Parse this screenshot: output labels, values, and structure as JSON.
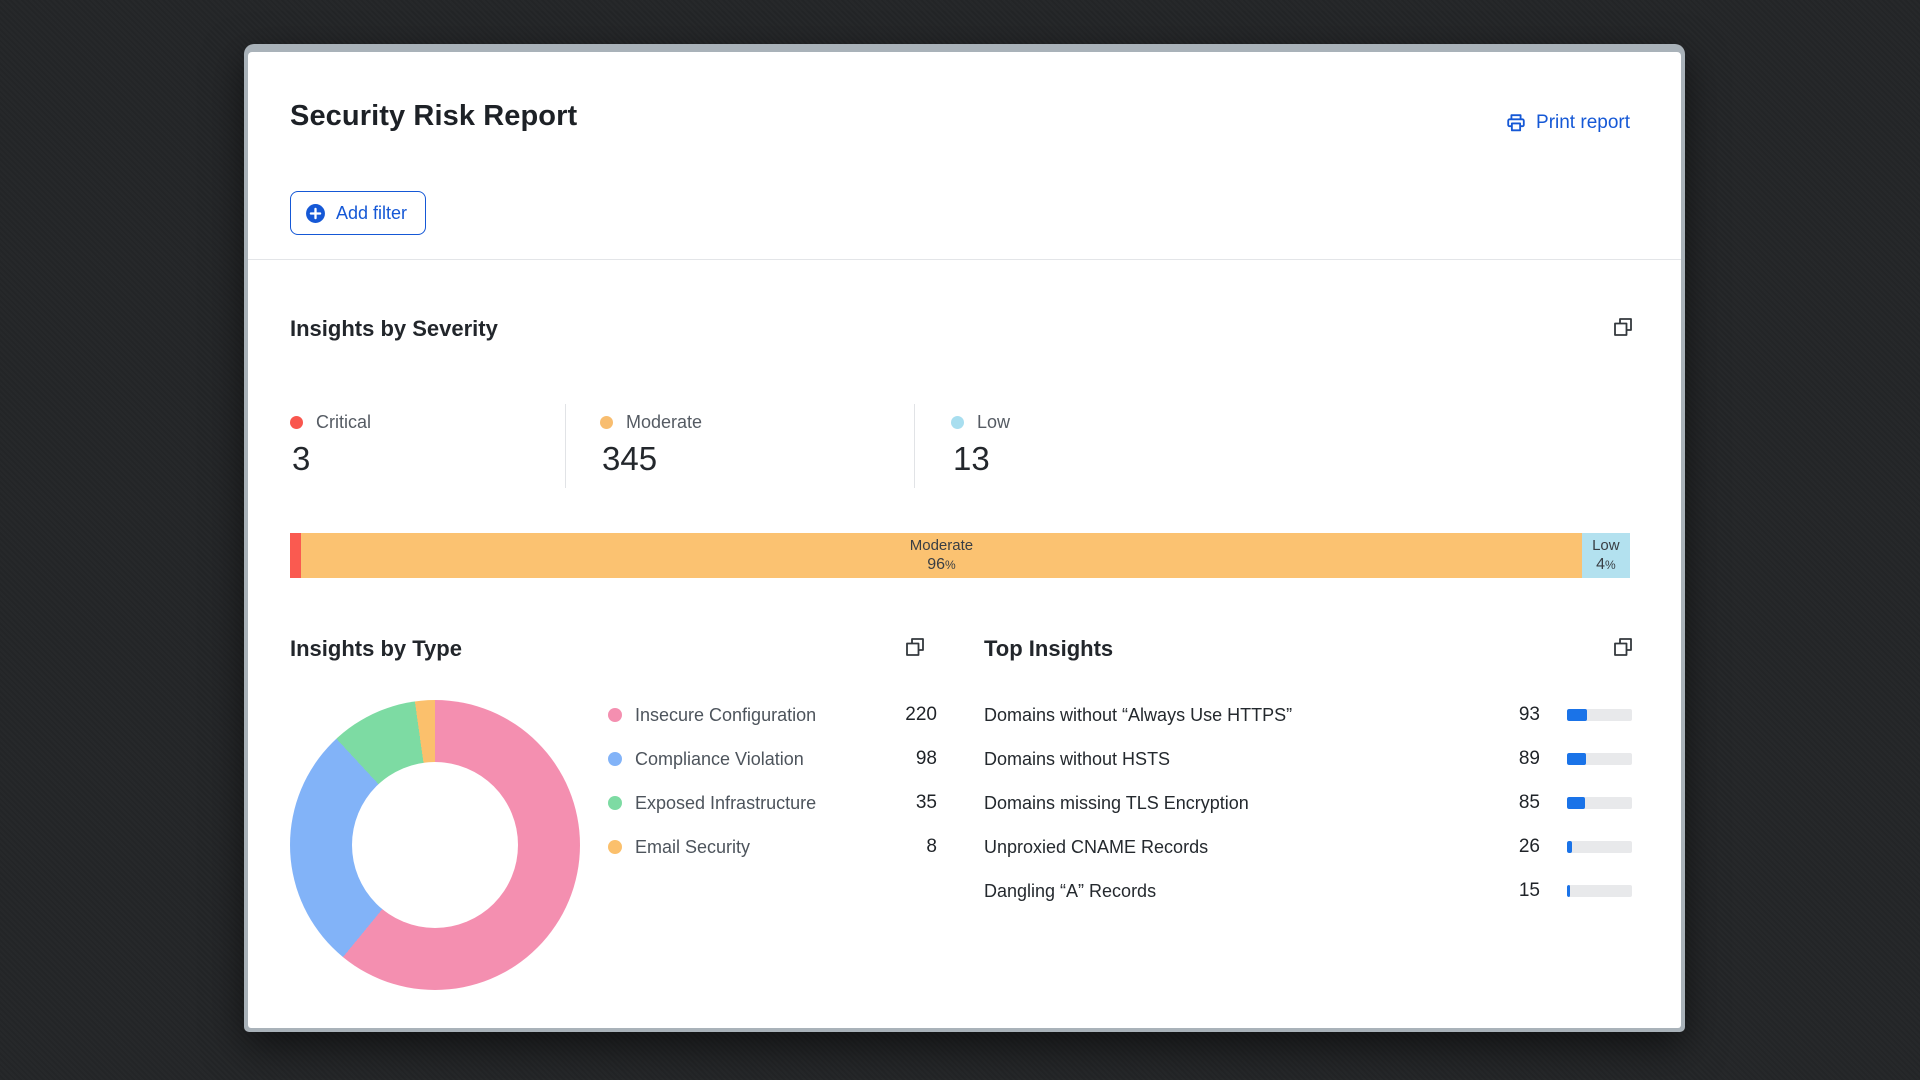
{
  "header": {
    "title": "Security Risk Report",
    "print_label": "Print report",
    "add_filter_label": "Add filter"
  },
  "icons": {
    "print": "printer-icon",
    "add_filter": "plus-circle-icon",
    "section_action": "copy-icon"
  },
  "colors": {
    "link_blue": "#1558d6",
    "critical_red": "#fa5a50",
    "moderate_orange": "#fbc271",
    "low_blue": "#b3e1ef",
    "mini_bar_blue": "#1a73e8",
    "background": "#242628",
    "window_chrome": "#a9b2b9"
  },
  "severity": {
    "section_title": "Insights by Severity",
    "stats": [
      {
        "label": "Critical",
        "value": "3",
        "color": "#f9564e"
      },
      {
        "label": "Moderate",
        "value": "345",
        "color": "#f8bd6f"
      },
      {
        "label": "Low",
        "value": "13",
        "color": "#a8deef"
      }
    ],
    "bar": {
      "segments": [
        {
          "name": "Critical",
          "pct": 0.83,
          "color": "#fa5a50",
          "label": "",
          "pct_label": "",
          "pct_sign": ""
        },
        {
          "name": "Moderate",
          "pct": 95.57,
          "color": "#fbc271",
          "label": "Moderate",
          "pct_label": "96",
          "pct_sign": "%"
        },
        {
          "name": "Low",
          "pct": 3.6,
          "color": "#b3e1ef",
          "label": "Low",
          "pct_label": "4",
          "pct_sign": "%"
        }
      ]
    }
  },
  "by_type": {
    "section_title": "Insights by Type",
    "items": [
      {
        "label": "Insecure Configuration",
        "value": 220,
        "color": "#f48fb0"
      },
      {
        "label": "Compliance Violation",
        "value": 98,
        "color": "#82b3f8"
      },
      {
        "label": "Exposed Infrastructure",
        "value": 35,
        "color": "#7ddba3"
      },
      {
        "label": "Email Security",
        "value": 8,
        "color": "#fbc06c"
      }
    ]
  },
  "top_insights": {
    "section_title": "Top Insights",
    "items": [
      {
        "label": "Domains without “Always Use HTTPS”",
        "value": 93,
        "bar_pct": 30
      },
      {
        "label": "Domains without HSTS",
        "value": 89,
        "bar_pct": 29
      },
      {
        "label": "Domains missing TLS Encryption",
        "value": 85,
        "bar_pct": 28
      },
      {
        "label": "Unproxied CNAME Records",
        "value": 26,
        "bar_pct": 8
      },
      {
        "label": "Dangling “A” Records",
        "value": 15,
        "bar_pct": 5
      }
    ]
  },
  "chart_data": [
    {
      "type": "bar",
      "title": "Insights by Severity",
      "categories": [
        "Critical",
        "Moderate",
        "Low"
      ],
      "values": [
        3,
        345,
        13
      ],
      "annotations": [
        "",
        "Moderate 96%",
        "Low 4%"
      ],
      "layout": "single horizontal stacked bar"
    },
    {
      "type": "pie",
      "title": "Insights by Type",
      "categories": [
        "Insecure Configuration",
        "Compliance Violation",
        "Exposed Infrastructure",
        "Email Security"
      ],
      "values": [
        220,
        98,
        35,
        8
      ],
      "legend_position": "right",
      "style": "donut"
    },
    {
      "type": "bar",
      "title": "Top Insights",
      "categories": [
        "Domains without “Always Use HTTPS”",
        "Domains without HSTS",
        "Domains missing TLS Encryption",
        "Unproxied CNAME Records",
        "Dangling “A” Records"
      ],
      "values": [
        93,
        89,
        85,
        26,
        15
      ],
      "layout": "horizontal mini bars"
    }
  ]
}
